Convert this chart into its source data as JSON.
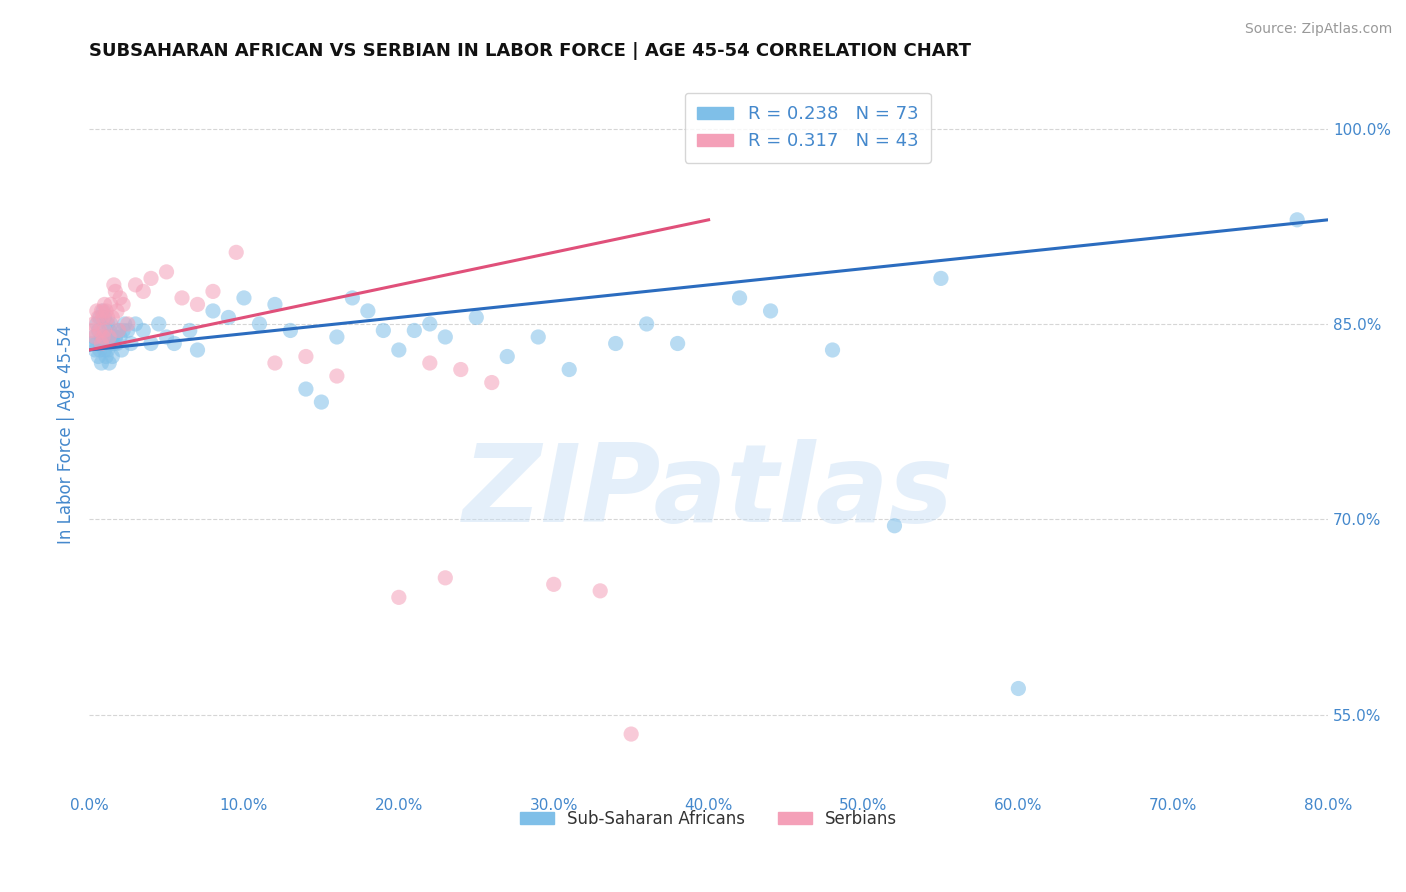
{
  "title": "SUBSAHARAN AFRICAN VS SERBIAN IN LABOR FORCE | AGE 45-54 CORRELATION CHART",
  "source": "Source: ZipAtlas.com",
  "xlabel_ticks": [
    "0.0%",
    "10.0%",
    "20.0%",
    "30.0%",
    "40.0%",
    "50.0%",
    "60.0%",
    "70.0%",
    "80.0%"
  ],
  "xlabel_vals": [
    0.0,
    10.0,
    20.0,
    30.0,
    40.0,
    50.0,
    60.0,
    70.0,
    80.0
  ],
  "ylabel_ticks": [
    "55.0%",
    "70.0%",
    "85.0%",
    "100.0%"
  ],
  "ylabel_vals": [
    55.0,
    70.0,
    85.0,
    100.0
  ],
  "ylabel_label": "In Labor Force | Age 45-54",
  "xlim": [
    0.0,
    80.0
  ],
  "ylim": [
    49.0,
    104.0
  ],
  "blue_R": 0.238,
  "blue_N": 73,
  "pink_R": 0.317,
  "pink_N": 43,
  "blue_color": "#7fbfe8",
  "pink_color": "#f4a0b8",
  "blue_line_color": "#2b6cbf",
  "pink_line_color": "#e0507a",
  "blue_scatter_x": [
    0.2,
    0.3,
    0.4,
    0.5,
    0.5,
    0.6,
    0.6,
    0.7,
    0.7,
    0.8,
    0.8,
    0.9,
    0.9,
    1.0,
    1.0,
    1.1,
    1.1,
    1.2,
    1.2,
    1.3,
    1.3,
    1.4,
    1.4,
    1.5,
    1.5,
    1.6,
    1.7,
    1.8,
    1.9,
    2.0,
    2.1,
    2.2,
    2.3,
    2.5,
    2.7,
    3.0,
    3.5,
    4.0,
    4.5,
    5.0,
    5.5,
    6.5,
    7.0,
    8.0,
    9.0,
    10.0,
    11.0,
    12.0,
    13.0,
    14.0,
    15.0,
    16.0,
    17.0,
    18.0,
    19.0,
    20.0,
    21.0,
    22.0,
    23.0,
    25.0,
    27.0,
    29.0,
    31.0,
    34.0,
    36.0,
    38.0,
    42.0,
    44.0,
    48.0,
    52.0,
    55.0,
    60.0,
    78.0
  ],
  "blue_scatter_y": [
    83.5,
    84.0,
    83.0,
    85.0,
    83.5,
    84.5,
    82.5,
    85.5,
    83.0,
    84.0,
    82.0,
    86.0,
    83.5,
    85.5,
    83.0,
    84.0,
    82.5,
    85.0,
    83.0,
    84.5,
    82.0,
    85.0,
    83.5,
    84.0,
    82.5,
    83.5,
    84.0,
    83.5,
    84.5,
    84.0,
    83.0,
    84.5,
    85.0,
    84.5,
    83.5,
    85.0,
    84.5,
    83.5,
    85.0,
    84.0,
    83.5,
    84.5,
    83.0,
    86.0,
    85.5,
    87.0,
    85.0,
    86.5,
    84.5,
    80.0,
    79.0,
    84.0,
    87.0,
    86.0,
    84.5,
    83.0,
    84.5,
    85.0,
    84.0,
    85.5,
    82.5,
    84.0,
    81.5,
    83.5,
    85.0,
    83.5,
    87.0,
    86.0,
    83.0,
    69.5,
    88.5,
    57.0,
    93.0
  ],
  "pink_scatter_x": [
    0.2,
    0.3,
    0.4,
    0.5,
    0.6,
    0.7,
    0.8,
    0.8,
    0.9,
    0.9,
    1.0,
    1.0,
    1.1,
    1.2,
    1.3,
    1.4,
    1.5,
    1.6,
    1.7,
    1.8,
    1.9,
    2.0,
    2.2,
    2.5,
    3.0,
    3.5,
    4.0,
    5.0,
    6.0,
    7.0,
    8.0,
    9.5,
    12.0,
    14.0,
    16.0,
    20.0,
    22.0,
    23.0,
    24.0,
    26.0,
    30.0,
    33.0,
    35.0
  ],
  "pink_scatter_y": [
    84.5,
    85.0,
    84.0,
    86.0,
    85.5,
    84.5,
    86.0,
    83.5,
    85.5,
    84.0,
    86.5,
    84.5,
    86.0,
    85.5,
    84.0,
    86.5,
    85.5,
    88.0,
    87.5,
    86.0,
    84.5,
    87.0,
    86.5,
    85.0,
    88.0,
    87.5,
    88.5,
    89.0,
    87.0,
    86.5,
    87.5,
    90.5,
    82.0,
    82.5,
    81.0,
    64.0,
    82.0,
    65.5,
    81.5,
    80.5,
    65.0,
    64.5,
    53.5
  ],
  "blue_trendline_x": [
    0.0,
    80.0
  ],
  "blue_trendline_y": [
    83.0,
    93.0
  ],
  "pink_trendline_x": [
    0.0,
    40.0
  ],
  "pink_trendline_y": [
    83.0,
    93.0
  ],
  "watermark": "ZIPatlas",
  "title_color": "#111111",
  "axis_color": "#4488cc",
  "grid_color": "#cccccc",
  "background_color": "#ffffff"
}
